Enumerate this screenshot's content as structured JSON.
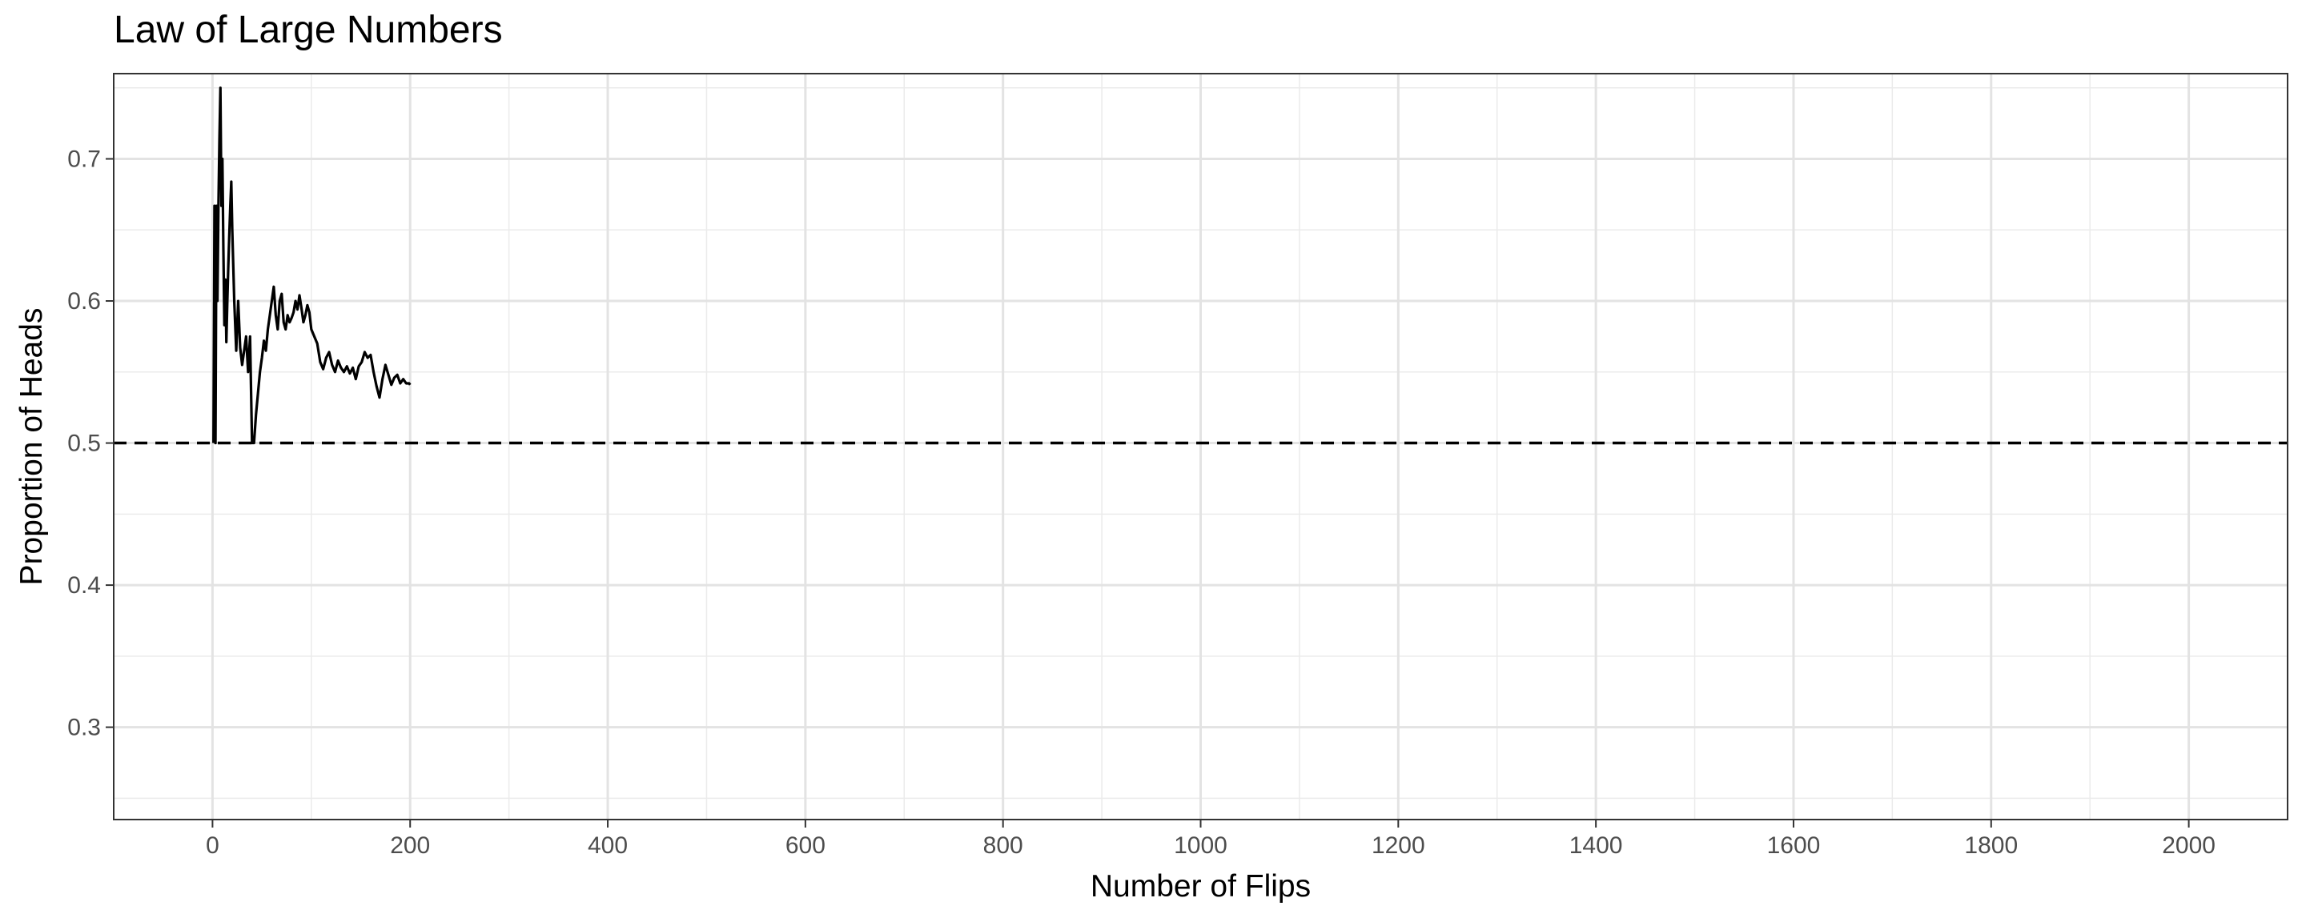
{
  "chart_data": {
    "type": "line",
    "title": "Law of Large Numbers",
    "xlabel": "Number of Flips",
    "ylabel": "Proportion of Heads",
    "xlim": [
      -100,
      2100
    ],
    "ylim": [
      0.235,
      0.76
    ],
    "x_ticks": [
      0,
      200,
      400,
      600,
      800,
      1000,
      1200,
      1400,
      1600,
      1800,
      2000
    ],
    "y_ticks": [
      0.3,
      0.4,
      0.5,
      0.6,
      0.7
    ],
    "x_tick_labels": [
      "0",
      "200",
      "400",
      "600",
      "800",
      "1000",
      "1200",
      "1400",
      "1600",
      "1800",
      "2000"
    ],
    "y_tick_labels": [
      "0.3",
      "0.4",
      "0.5",
      "0.6",
      "0.7"
    ],
    "grid": true,
    "reference_line": {
      "y": 0.5,
      "style": "dashed",
      "color": "#000000"
    },
    "series": [
      {
        "color": "#000000",
        "x": [
          1,
          2,
          3,
          4,
          5,
          6,
          7,
          8,
          9,
          10,
          11,
          12,
          13,
          14,
          15,
          16,
          17,
          18,
          19,
          20,
          22,
          24,
          26,
          28,
          30,
          32,
          34,
          36,
          38,
          40,
          42,
          44,
          46,
          48,
          50,
          52,
          54,
          56,
          58,
          60,
          62,
          64,
          66,
          68,
          70,
          72,
          74,
          76,
          78,
          80,
          82,
          84,
          86,
          88,
          90,
          92,
          94,
          96,
          98,
          100,
          103,
          106,
          109,
          112,
          115,
          118,
          121,
          124,
          127,
          130,
          133,
          136,
          139,
          142,
          145,
          148,
          151,
          154,
          157,
          160,
          163,
          166,
          169,
          172,
          175,
          178,
          181,
          184,
          187,
          190,
          193,
          196,
          199,
          200
        ],
        "y": [
          0.5,
          0.667,
          0.5,
          0.667,
          0.6,
          0.667,
          0.714,
          0.75,
          0.667,
          0.7,
          0.636,
          0.583,
          0.615,
          0.571,
          0.6,
          0.625,
          0.647,
          0.667,
          0.684,
          0.65,
          0.6,
          0.565,
          0.6,
          0.567,
          0.555,
          0.565,
          0.575,
          0.55,
          0.575,
          0.5,
          0.5,
          0.52,
          0.535,
          0.55,
          0.56,
          0.572,
          0.565,
          0.58,
          0.59,
          0.6,
          0.61,
          0.59,
          0.58,
          0.6,
          0.605,
          0.585,
          0.58,
          0.59,
          0.585,
          0.588,
          0.592,
          0.6,
          0.594,
          0.604,
          0.595,
          0.585,
          0.59,
          0.597,
          0.592,
          0.58,
          0.575,
          0.57,
          0.557,
          0.552,
          0.56,
          0.564,
          0.555,
          0.55,
          0.558,
          0.553,
          0.55,
          0.554,
          0.549,
          0.553,
          0.545,
          0.554,
          0.557,
          0.564,
          0.56,
          0.562,
          0.55,
          0.54,
          0.532,
          0.545,
          0.555,
          0.548,
          0.541,
          0.546,
          0.548,
          0.542,
          0.545,
          0.542,
          0.542,
          0.541
        ]
      }
    ]
  }
}
